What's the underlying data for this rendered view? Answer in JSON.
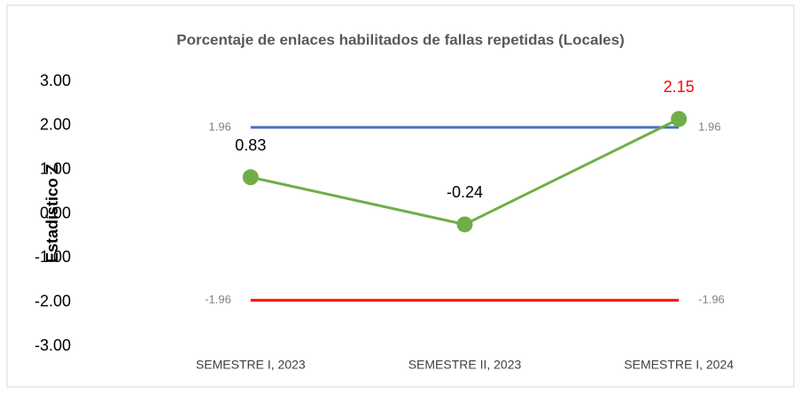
{
  "chart_data": {
    "type": "line",
    "title": "Porcentaje de enlaces habilitados de fallas repetidas (Locales)",
    "y_label": "Estadístico Z",
    "categories": [
      "SEMESTRE I, 2023",
      "SEMESTRE II, 2023",
      "SEMESTRE I, 2024"
    ],
    "series": [
      {
        "color": "#4472c4",
        "values": [
          1.96,
          1.96,
          1.96
        ],
        "value_labels": [
          "1.96",
          null,
          "1.96"
        ],
        "label_color": "#808080",
        "markers": false
      },
      {
        "color": "#ff0000",
        "values": [
          -1.96,
          -1.96,
          -1.96
        ],
        "value_labels": [
          "-1.96",
          null,
          "-1.96"
        ],
        "label_color": "#808080",
        "markers": false
      },
      {
        "color": "#70ad47",
        "values": [
          0.83,
          -0.24,
          2.15
        ],
        "value_label_colors": [
          "#000000",
          "#000000",
          "#ff0000"
        ],
        "markers": true
      }
    ],
    "ylim": [
      -3,
      3
    ],
    "yticks": [
      {
        "value": -3,
        "label": "-3.00"
      },
      {
        "value": -2,
        "label": "-2.00"
      },
      {
        "value": -1,
        "label": "-1.00"
      },
      {
        "value": 0,
        "label": "0.00"
      },
      {
        "value": 1,
        "label": "1.00"
      },
      {
        "value": 2,
        "label": "2.00"
      },
      {
        "value": 3,
        "label": "3.00"
      }
    ],
    "grid": false
  }
}
